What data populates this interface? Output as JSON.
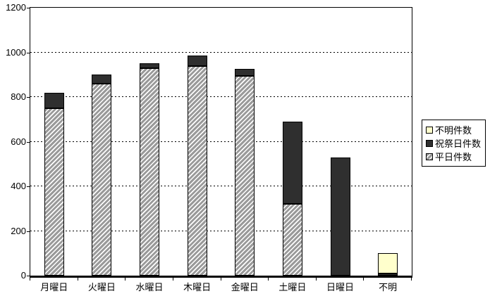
{
  "chart_data": {
    "type": "bar",
    "stacked": true,
    "title": "",
    "xlabel": "",
    "ylabel": "",
    "categories": [
      "月曜日",
      "火曜日",
      "水曜日",
      "木曜日",
      "金曜日",
      "土曜日",
      "日曜日",
      "不明"
    ],
    "category_keys": [
      "monday",
      "tuesday",
      "wednesday",
      "thursday",
      "friday",
      "saturday",
      "sunday",
      "unknown"
    ],
    "series": [
      {
        "name": "平日件数",
        "key": "weekday",
        "style": "hatch",
        "values": [
          750,
          860,
          930,
          940,
          895,
          320,
          0,
          0
        ]
      },
      {
        "name": "祝祭日件数",
        "key": "holiday",
        "style": "dark",
        "values": [
          70,
          40,
          20,
          45,
          30,
          370,
          530,
          8
        ]
      },
      {
        "name": "不明件数",
        "key": "unknown",
        "style": "yellow",
        "values": [
          0,
          0,
          0,
          0,
          0,
          0,
          0,
          92
        ]
      }
    ],
    "totals": [
      820,
      900,
      950,
      985,
      925,
      690,
      530,
      100
    ],
    "ylim": [
      0,
      1200
    ],
    "ytick_interval": 200,
    "ytick_labels": [
      "0",
      "200",
      "400",
      "600",
      "800",
      "1000",
      "1200"
    ],
    "grid": "horizontal-dotted",
    "legend": {
      "position": "right",
      "items": [
        {
          "label": "不明件数",
          "style": "yellow"
        },
        {
          "label": "祝祭日件数",
          "style": "dark"
        },
        {
          "label": "平日件数",
          "style": "hatch"
        }
      ]
    },
    "colors": {
      "hatch_base": "#9a9a9a",
      "hatch_stripe": "#ffffff",
      "dark": "#2f2f2f",
      "yellow": "#ffffcc",
      "outline": "#000000",
      "background": "#ffffff"
    }
  }
}
